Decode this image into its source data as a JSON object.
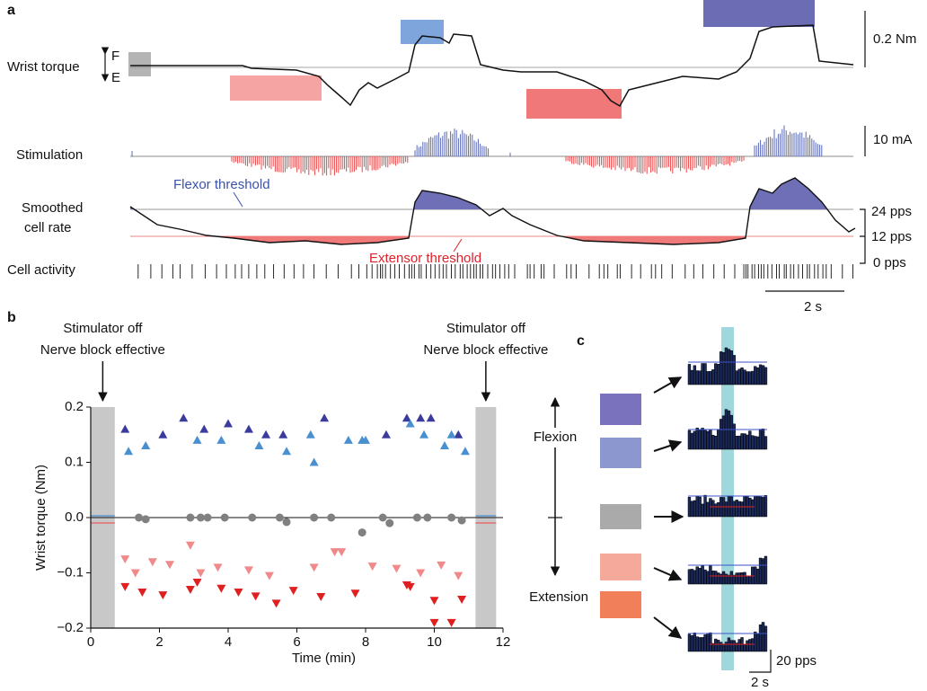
{
  "panel_a": {
    "label": "a",
    "torque_label": "Wrist torque",
    "flex_letter": "F",
    "ext_letter": "E",
    "torque_scale": "0.2 Nm",
    "stim_label": "Stimulation",
    "stim_scale": "10 mA",
    "rate_label": [
      "Smoothed",
      "cell rate"
    ],
    "flexor_threshold": "Flexor threshold",
    "extensor_threshold": "Extensor threshold",
    "rate_scale": [
      "24 pps",
      "12 pps",
      "0 pps"
    ],
    "activity_label": "Cell activity",
    "time_scale": "2 s"
  },
  "chart_data": {
    "type": "scatter",
    "label": "b",
    "xlabel": "Time (min)",
    "ylabel": "Wrist torque (Nm)",
    "xlim": [
      0,
      12
    ],
    "ylim": [
      -0.2,
      0.2
    ],
    "xticks": [
      0,
      2,
      4,
      6,
      8,
      10,
      12
    ],
    "yticks": [
      0.2,
      0.1,
      {
        "value": 0,
        "label": "0.0"
      },
      {
        "value": -0.1,
        "label": "−0.1"
      },
      {
        "value": -0.2,
        "label": "−0.2"
      }
    ],
    "bands": [
      [
        0,
        0.7
      ],
      [
        11.2,
        11.8
      ]
    ],
    "band_color": "#c8c8c8",
    "annotations": [
      [
        "Stimulator off",
        "Nerve block effective"
      ],
      [
        "Stimulator off",
        "Nerve block effective"
      ]
    ],
    "series": [
      {
        "color": "#3b3b9e",
        "marker": "triangle-up",
        "x": [
          1.0,
          2.1,
          2.7,
          3.3,
          4.0,
          4.6,
          5.1,
          5.6,
          6.8,
          8.6,
          9.2,
          9.6,
          9.9,
          10.7
        ],
        "values": [
          0.16,
          0.15,
          0.18,
          0.16,
          0.17,
          0.16,
          0.15,
          0.15,
          0.18,
          0.15,
          0.18,
          0.18,
          0.18,
          0.15
        ]
      },
      {
        "color": "#4a8fd0",
        "marker": "triangle-up",
        "x": [
          1.1,
          1.6,
          3.1,
          3.8,
          4.9,
          5.7,
          6.4,
          6.5,
          7.5,
          7.9,
          8.0,
          9.3,
          9.7,
          10.3,
          10.5,
          10.9
        ],
        "values": [
          0.12,
          0.13,
          0.14,
          0.14,
          0.13,
          0.12,
          0.15,
          0.1,
          0.14,
          0.14,
          0.14,
          0.17,
          0.15,
          0.13,
          0.15,
          0.12
        ]
      },
      {
        "color": "#808080",
        "marker": "circle",
        "x": [
          1.4,
          1.6,
          2.9,
          3.2,
          3.4,
          3.9,
          4.7,
          5.5,
          5.7,
          6.5,
          7.0,
          7.9,
          8.5,
          8.7,
          9.5,
          9.8,
          10.5,
          10.8
        ],
        "values": [
          0,
          -0.003,
          0,
          0,
          0,
          0,
          0,
          0,
          -0.008,
          0,
          0,
          -0.027,
          0,
          -0.01,
          0,
          0,
          0,
          -0.005
        ]
      },
      {
        "color": "#f08a8a",
        "marker": "triangle-down",
        "x": [
          1.0,
          1.3,
          1.8,
          2.3,
          2.9,
          3.2,
          3.7,
          4.6,
          5.2,
          6.5,
          7.1,
          7.3,
          8.2,
          8.9,
          9.6,
          10.2,
          10.7
        ],
        "values": [
          -0.075,
          -0.1,
          -0.08,
          -0.085,
          -0.05,
          -0.1,
          -0.09,
          -0.095,
          -0.105,
          -0.09,
          -0.062,
          -0.062,
          -0.088,
          -0.092,
          -0.1,
          -0.086,
          -0.105
        ]
      },
      {
        "color": "#e02020",
        "marker": "triangle-down",
        "x": [
          1.0,
          1.5,
          2.1,
          2.9,
          3.1,
          3.8,
          4.3,
          4.8,
          5.4,
          5.9,
          6.7,
          7.7,
          9.2,
          9.3,
          10.0,
          10.0,
          10.5,
          10.8
        ],
        "values": [
          -0.125,
          -0.135,
          -0.14,
          -0.13,
          -0.117,
          -0.128,
          -0.135,
          -0.142,
          -0.155,
          -0.132,
          -0.143,
          -0.137,
          -0.122,
          -0.125,
          -0.15,
          -0.19,
          -0.19,
          -0.148
        ]
      }
    ]
  },
  "panel_c": {
    "label": "c",
    "flexion": "Flexion",
    "extension": "Extension",
    "rate_scale": "20 pps",
    "time_scale": "2 s"
  }
}
